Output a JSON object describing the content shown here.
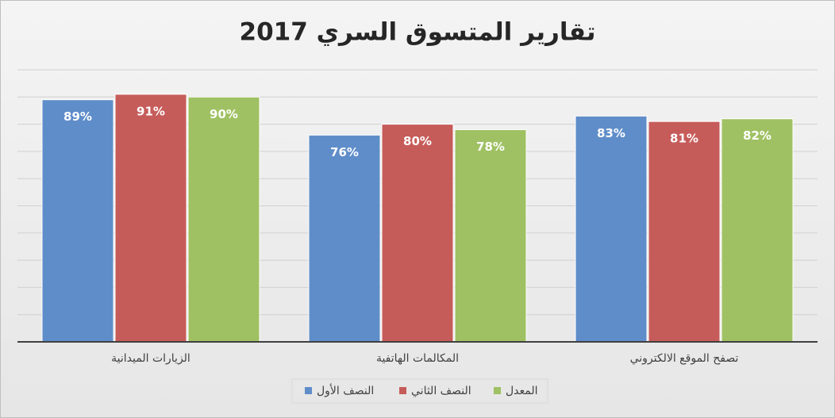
{
  "chart_data": {
    "type": "bar",
    "title": "تقارير المتسوق السري 2017",
    "categories": [
      "الزيارات الميدانية",
      "المكالمات الهاتفية",
      "تصفح الموقع الالكتروني"
    ],
    "series": [
      {
        "name": "النصف الأول",
        "color": "#5f8dc9",
        "values": [
          89,
          76,
          83
        ],
        "value_labels": [
          "89%",
          "76%",
          "83%"
        ]
      },
      {
        "name": "النصف الثاني",
        "color": "#c65c5a",
        "values": [
          91,
          80,
          81
        ],
        "value_labels": [
          "91%",
          "80%",
          "81%"
        ]
      },
      {
        "name": "المعدل",
        "color": "#9fc163",
        "values": [
          90,
          78,
          82
        ],
        "value_labels": [
          "90%",
          "78%",
          "82%"
        ]
      }
    ],
    "ylim": [
      0,
      100
    ],
    "yticks": [
      0,
      10,
      20,
      30,
      40,
      50,
      60,
      70,
      80,
      90,
      100
    ],
    "grid": true,
    "legend": "bottom"
  }
}
